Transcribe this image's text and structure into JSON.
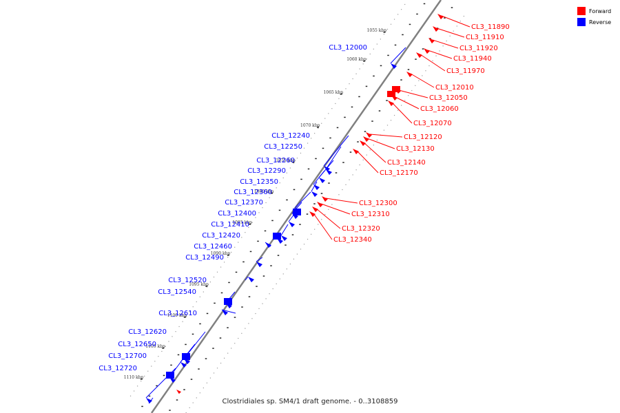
{
  "legend": {
    "items": [
      {
        "label": "Forward",
        "color": "#ff0000"
      },
      {
        "label": "Reverse",
        "color": "#0000ff"
      }
    ]
  },
  "caption": "Clostridiales sp. SM4/1 draft genome. - 0..3108859",
  "colors": {
    "forward": "#ff0000",
    "reverse": "#0000ff",
    "backbone": "#808080"
  },
  "kbp_ticks": [
    "1055 kbp",
    "1060 kbp",
    "1065 kbp",
    "1070 kbp",
    "1075 kbp",
    "1080 kbp",
    "1085 kbp",
    "1090 kbp",
    "1095 kbp",
    "1100 kbp",
    "1105 kbp",
    "1110 kbp"
  ],
  "forward_genes": [
    "CL3_11890",
    "CL3_11910",
    "CL3_11920",
    "CL3_11940",
    "CL3_11970",
    "CL3_12010",
    "CL3_12050",
    "CL3_12060",
    "CL3_12070",
    "CL3_12120",
    "CL3_12130",
    "CL3_12140",
    "CL3_12170",
    "CL3_12300",
    "CL3_12310",
    "CL3_12320",
    "CL3_12340"
  ],
  "reverse_genes": [
    "CL3_12000",
    "CL3_12240",
    "CL3_12250",
    "CL3_12260",
    "CL3_12290",
    "CL3_12350",
    "CL3_12360",
    "CL3_12370",
    "CL3_12400",
    "CL3_12410",
    "CL3_12420",
    "CL3_12460",
    "CL3_12490",
    "CL3_12520",
    "CL3_12540",
    "CL3_12610",
    "CL3_12620",
    "CL3_12650",
    "CL3_12700",
    "CL3_12720"
  ]
}
